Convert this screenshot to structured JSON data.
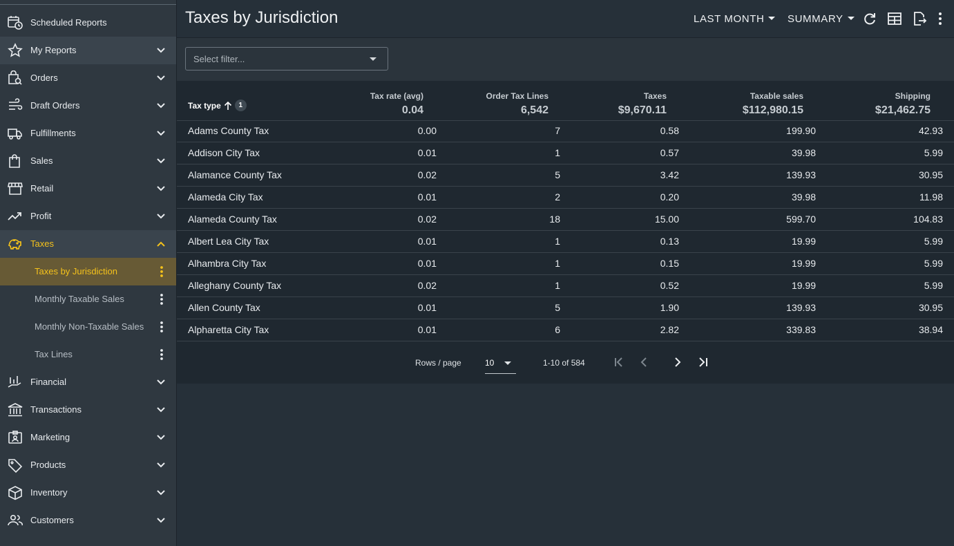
{
  "sidebar": {
    "items": [
      {
        "label": "Scheduled Reports",
        "icon": "calendar-clock-icon"
      },
      {
        "label": "My Reports",
        "icon": "star-icon"
      },
      {
        "label": "Orders",
        "icon": "shopping-bag-search-icon"
      },
      {
        "label": "Draft Orders",
        "icon": "wind-lines-icon"
      },
      {
        "label": "Fulfillments",
        "icon": "truck-icon"
      },
      {
        "label": "Sales",
        "icon": "shopping-bag-icon"
      },
      {
        "label": "Retail",
        "icon": "storefront-icon"
      },
      {
        "label": "Profit",
        "icon": "trending-up-icon"
      },
      {
        "label": "Taxes",
        "icon": "piggy-bank-icon"
      },
      {
        "label": "Financial",
        "icon": "chart-hand-icon"
      },
      {
        "label": "Transactions",
        "icon": "bank-icon"
      },
      {
        "label": "Marketing",
        "icon": "badge-card-icon"
      },
      {
        "label": "Products",
        "icon": "tag-icon"
      },
      {
        "label": "Inventory",
        "icon": "package-icon"
      },
      {
        "label": "Customers",
        "icon": "people-icon"
      }
    ],
    "taxes_sub": [
      {
        "label": "Taxes by Jurisdiction"
      },
      {
        "label": "Monthly Taxable Sales"
      },
      {
        "label": "Monthly Non-Taxable Sales"
      },
      {
        "label": "Tax Lines"
      }
    ]
  },
  "header": {
    "title": "Taxes by Jurisdiction",
    "period_label": "LAST MONTH",
    "view_label": "SUMMARY"
  },
  "filter": {
    "placeholder": "Select filter..."
  },
  "table": {
    "columns": [
      {
        "label": "Tax type",
        "summary": ""
      },
      {
        "label": "Tax rate (avg)",
        "summary": "0.04"
      },
      {
        "label": "Order Tax Lines",
        "summary": "6,542"
      },
      {
        "label": "Taxes",
        "summary": "$9,670.11"
      },
      {
        "label": "Taxable sales",
        "summary": "$112,980.15"
      },
      {
        "label": "Shipping",
        "summary": "$21,462.75"
      }
    ],
    "sort_badge": "1",
    "rows": [
      [
        "Adams County Tax",
        "0.00",
        "7",
        "0.58",
        "199.90",
        "42.93"
      ],
      [
        "Addison City Tax",
        "0.01",
        "1",
        "0.57",
        "39.98",
        "5.99"
      ],
      [
        "Alamance County Tax",
        "0.02",
        "5",
        "3.42",
        "139.93",
        "30.95"
      ],
      [
        "Alameda City Tax",
        "0.01",
        "2",
        "0.20",
        "39.98",
        "11.98"
      ],
      [
        "Alameda County Tax",
        "0.02",
        "18",
        "15.00",
        "599.70",
        "104.83"
      ],
      [
        "Albert Lea City Tax",
        "0.01",
        "1",
        "0.13",
        "19.99",
        "5.99"
      ],
      [
        "Alhambra City Tax",
        "0.01",
        "1",
        "0.15",
        "19.99",
        "5.99"
      ],
      [
        "Alleghany County Tax",
        "0.02",
        "1",
        "0.52",
        "19.99",
        "5.99"
      ],
      [
        "Allen County Tax",
        "0.01",
        "5",
        "1.90",
        "139.93",
        "30.95"
      ],
      [
        "Alpharetta City Tax",
        "0.01",
        "6",
        "2.82",
        "339.83",
        "38.94"
      ]
    ]
  },
  "pagination": {
    "rows_label": "Rows / page",
    "rows_value": "10",
    "range": "1-10 of 584"
  },
  "colors": {
    "accent": "#f5c21b",
    "selected_bg": "#675a35"
  }
}
